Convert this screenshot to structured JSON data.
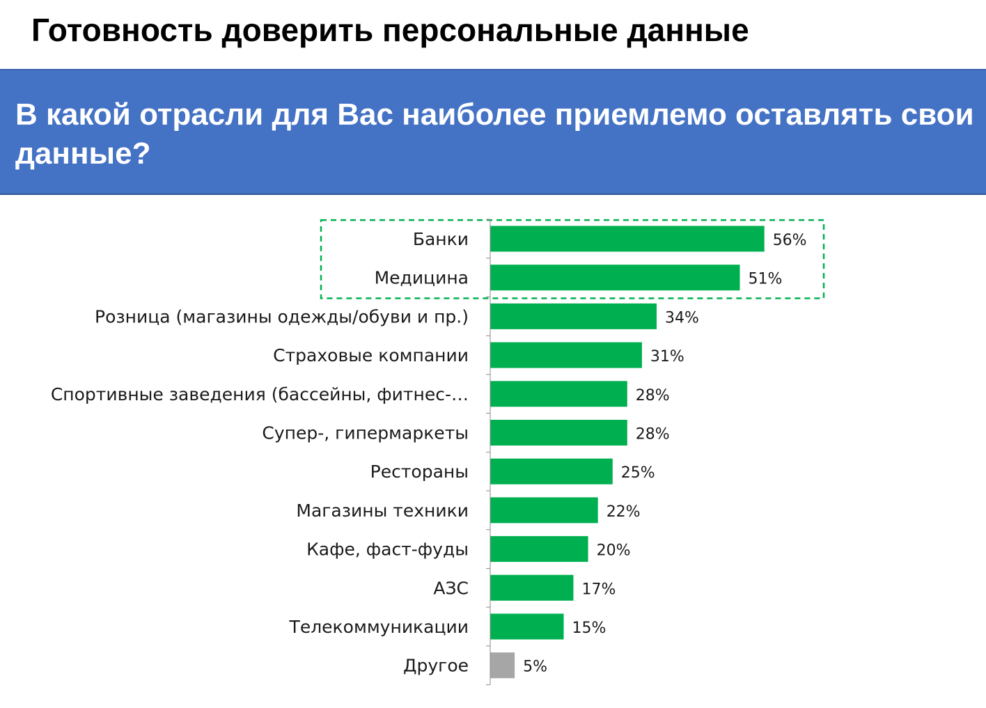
{
  "slide": {
    "title": "Готовность доверить персональные данные",
    "question": "В какой отрасли для Вас наиболее приемлемо оставлять свои данные?"
  },
  "colors": {
    "band": "#4472c4",
    "bar": "#00b050",
    "bar_other": "#a6a6a6",
    "highlight_border": "#00b050"
  },
  "chart_data": {
    "type": "bar",
    "orientation": "horizontal",
    "categories": [
      "Банки",
      "Медицина",
      "Розница (магазины одежды/обуви и пр.)",
      "Страховые компании",
      "Спортивные заведения (бассейны, фитнес-…",
      "Супер-, гипермаркеты",
      "Рестораны",
      "Магазины техники",
      "Кафе, фаст-фуды",
      "АЗС",
      "Телекоммуникации",
      "Другое"
    ],
    "values": [
      56,
      51,
      34,
      31,
      28,
      28,
      25,
      22,
      20,
      17,
      15,
      5
    ],
    "value_labels": [
      "56%",
      "51%",
      "34%",
      "31%",
      "28%",
      "28%",
      "25%",
      "22%",
      "20%",
      "17%",
      "15%",
      "5%"
    ],
    "unit": "%",
    "xlim": [
      0,
      100
    ],
    "grid": false,
    "legend": "none",
    "highlighted_categories": [
      "Банки",
      "Медицина"
    ],
    "muted_categories": [
      "Другое"
    ]
  }
}
